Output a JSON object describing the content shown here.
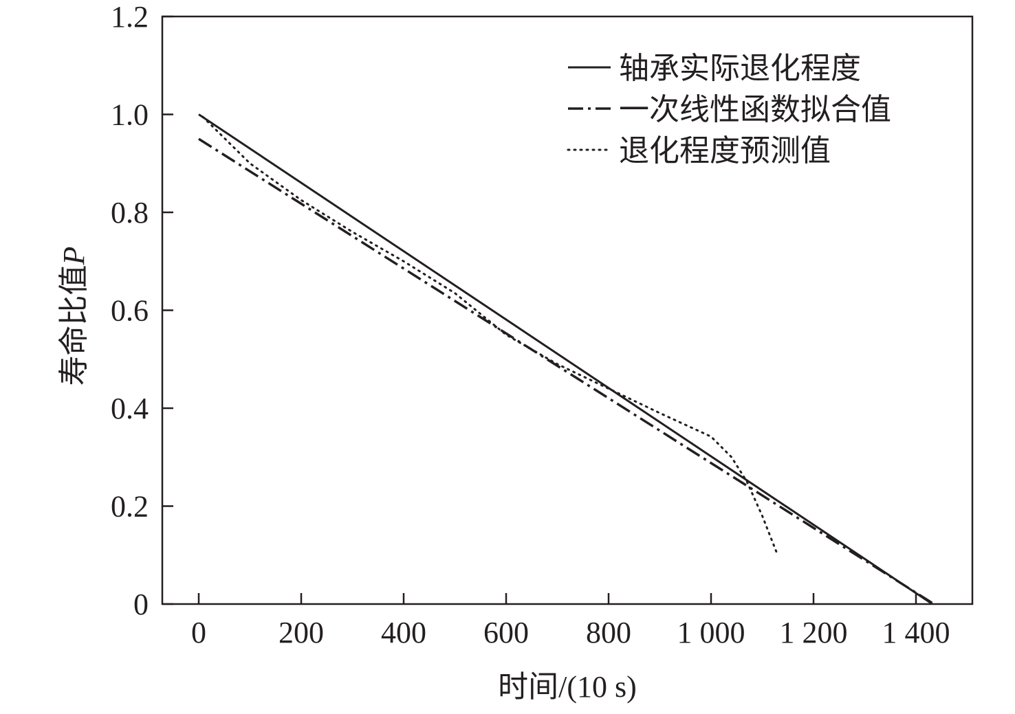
{
  "chart_data": {
    "type": "line",
    "title": "",
    "xlabel": "时间/(10 s)",
    "ylabel": "寿命比值",
    "ylabel_symbol": "P",
    "xlim": [
      -70,
      1510
    ],
    "ylim": [
      0,
      1.2
    ],
    "xticks": [
      0,
      200,
      400,
      600,
      800,
      1000,
      1200,
      1400
    ],
    "xtick_labels": [
      "0",
      "200",
      "400",
      "600",
      "800",
      "1 000",
      "1 200",
      "1 400"
    ],
    "yticks": [
      0,
      0.2,
      0.4,
      0.6,
      0.8,
      1.0,
      1.2
    ],
    "ytick_labels": [
      "0",
      "0.2",
      "0.4",
      "0.6",
      "0.8",
      "1.0",
      "1.2"
    ],
    "legend_position": "top-right",
    "grid": false,
    "series": [
      {
        "name": "轴承实际退化程度",
        "style": "solid",
        "x": [
          0,
          1432
        ],
        "y": [
          1.0,
          0.0
        ]
      },
      {
        "name": "一次线性函数拟合值",
        "style": "dashdot",
        "x": [
          0,
          1435
        ],
        "y": [
          0.95,
          0.0
        ]
      },
      {
        "name": "退化程度预测值",
        "style": "dotted",
        "x": [
          8,
          100,
          200,
          300,
          400,
          500,
          600,
          700,
          800,
          900,
          1000,
          1040,
          1070,
          1100,
          1130
        ],
        "y": [
          0.995,
          0.9,
          0.825,
          0.76,
          0.7,
          0.635,
          0.55,
          0.49,
          0.44,
          0.39,
          0.342,
          0.3,
          0.25,
          0.18,
          0.1
        ]
      }
    ],
    "color": "#231f20"
  }
}
